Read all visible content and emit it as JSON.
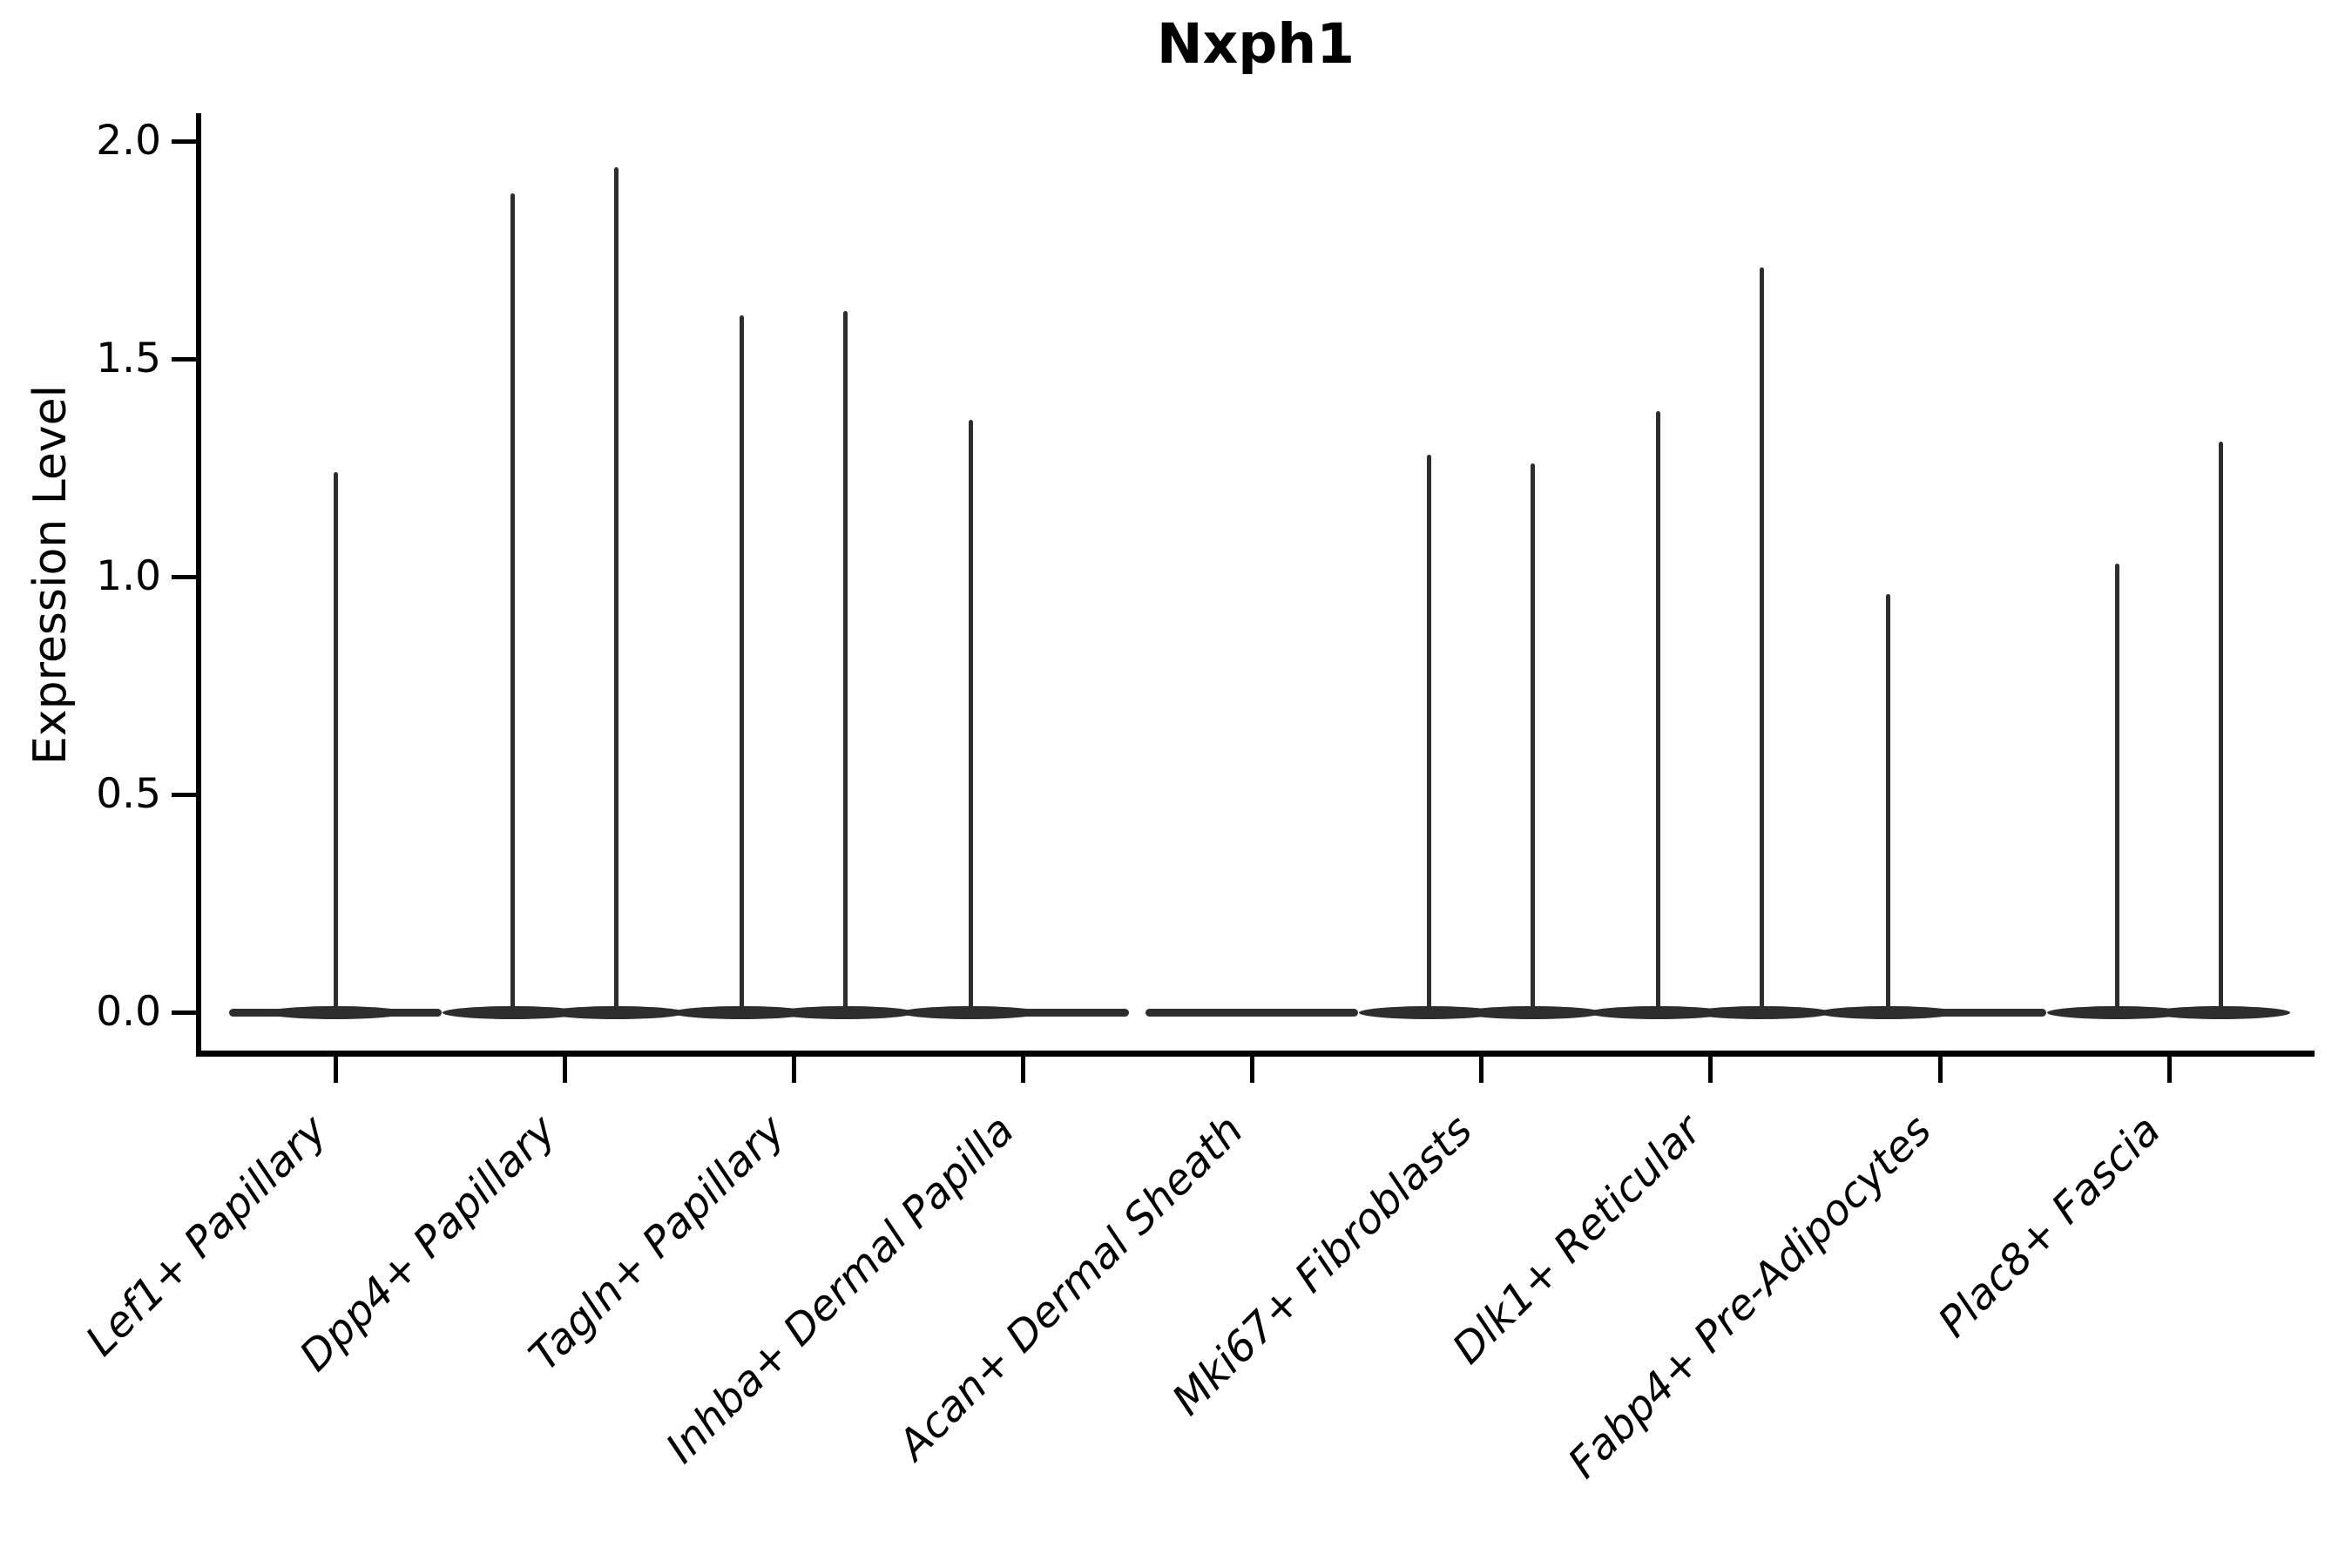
{
  "title": "Nxph1",
  "y_axis": {
    "label": "Expression Level",
    "tick_labels": [
      "0.0",
      "0.5",
      "1.0",
      "1.5",
      "2.0"
    ]
  },
  "chart_data": {
    "type": "violin",
    "title": "Nxph1",
    "xlabel": "",
    "ylabel": "Expression Level",
    "ylim": [
      0.0,
      2.0
    ],
    "yticks": [
      0.0,
      0.5,
      1.0,
      1.5,
      2.0
    ],
    "grid": false,
    "legend": false,
    "style_note": "sparse single-cell expression violins: wide flat base at 0 with thin spikes up to max expression; two violin slots per category",
    "categories": [
      {
        "name": "Lef1+ Papillary",
        "spikes": [
          {
            "position": "center",
            "max": 1.24
          }
        ]
      },
      {
        "name": "Dpp4+ Papillary",
        "spikes": [
          {
            "position": "left",
            "max": 1.88
          },
          {
            "position": "right",
            "max": 1.94
          }
        ]
      },
      {
        "name": "Tagln+ Papillary",
        "spikes": [
          {
            "position": "left",
            "max": 1.6
          },
          {
            "position": "right",
            "max": 1.61
          }
        ]
      },
      {
        "name": "Inhba+ Dermal Papilla",
        "spikes": [
          {
            "position": "left",
            "max": 1.36
          }
        ]
      },
      {
        "name": "Acan+ Dermal Sheath",
        "spikes": []
      },
      {
        "name": "Mki67+ Fibroblasts",
        "spikes": [
          {
            "position": "left",
            "max": 1.28
          },
          {
            "position": "right",
            "max": 1.26
          }
        ]
      },
      {
        "name": "Dlk1+ Reticular",
        "spikes": [
          {
            "position": "left",
            "max": 1.38
          },
          {
            "position": "right",
            "max": 1.71
          }
        ]
      },
      {
        "name": "Fabp4+ Pre-Adipocytes",
        "spikes": [
          {
            "position": "left",
            "max": 0.96
          }
        ]
      },
      {
        "name": "Plac8+ Fascia",
        "spikes": [
          {
            "position": "left",
            "max": 1.03
          },
          {
            "position": "right",
            "max": 1.31
          }
        ]
      }
    ],
    "violin_color": "#2d2d2d",
    "axis_color": "#000000"
  }
}
